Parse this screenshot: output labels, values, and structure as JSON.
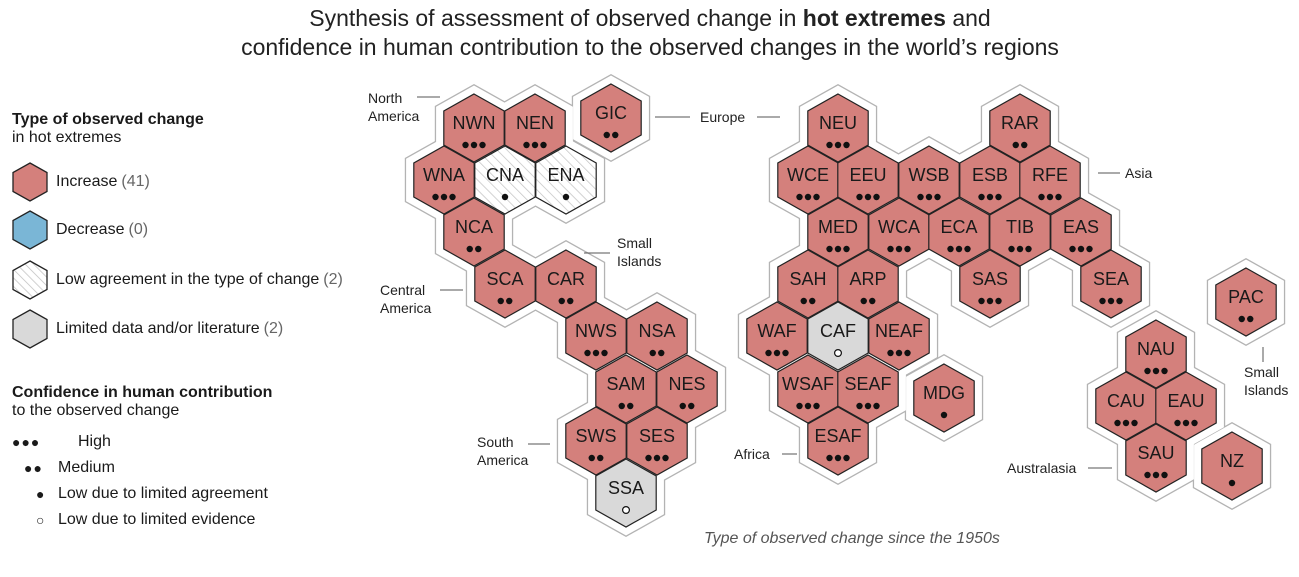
{
  "title": {
    "line1_pre": "Synthesis of assessment of observed change in ",
    "line1_bold": "hot extremes",
    "line1_post": " and",
    "line2": "confidence in human contribution to the observed changes in the world’s regions"
  },
  "legend": {
    "type_heading": "Type of observed change",
    "type_sub": "in hot extremes",
    "items": [
      {
        "label": "Increase",
        "count": "(41)",
        "color": "#d4807c"
      },
      {
        "label": "Decrease",
        "count": "(0)",
        "color": "#7ab6d6"
      },
      {
        "label": "Low agreement in the type of change",
        "count": "(2)",
        "color": "#ffffff"
      },
      {
        "label": "Limited data and/or literature",
        "count": "(2)",
        "color": "#d9d9d9"
      }
    ],
    "conf_heading": "Confidence in human contribution",
    "conf_sub": "to the observed change",
    "conf_items": [
      {
        "symbol": "●●●",
        "label": "High"
      },
      {
        "symbol": "●●",
        "label": "Medium"
      },
      {
        "symbol": "●",
        "label": "Low due to limited agreement"
      },
      {
        "symbol": "○",
        "label": "Low due to limited evidence"
      }
    ]
  },
  "region_labels": {
    "north_america": [
      "North",
      "America"
    ],
    "europe": [
      "Europe"
    ],
    "asia": [
      "Asia"
    ],
    "central_america": [
      "Central",
      "America"
    ],
    "small_islands_carib": [
      "Small",
      "Islands"
    ],
    "south_america": [
      "South",
      "America"
    ],
    "africa": [
      "Africa"
    ],
    "australasia": [
      "Australasia"
    ],
    "small_islands_pac": [
      "Small",
      "Islands"
    ]
  },
  "hexagons": [
    {
      "code": "NWN",
      "type": "increase",
      "confidence": "high"
    },
    {
      "code": "NEN",
      "type": "increase",
      "confidence": "high"
    },
    {
      "code": "GIC",
      "type": "increase",
      "confidence": "medium"
    },
    {
      "code": "WNA",
      "type": "increase",
      "confidence": "high"
    },
    {
      "code": "CNA",
      "type": "low_agreement",
      "confidence": "low_agreement"
    },
    {
      "code": "ENA",
      "type": "low_agreement",
      "confidence": "low_agreement"
    },
    {
      "code": "NCA",
      "type": "increase",
      "confidence": "medium"
    },
    {
      "code": "SCA",
      "type": "increase",
      "confidence": "medium"
    },
    {
      "code": "CAR",
      "type": "increase",
      "confidence": "medium"
    },
    {
      "code": "NWS",
      "type": "increase",
      "confidence": "high"
    },
    {
      "code": "NSA",
      "type": "increase",
      "confidence": "medium"
    },
    {
      "code": "SAM",
      "type": "increase",
      "confidence": "medium"
    },
    {
      "code": "NES",
      "type": "increase",
      "confidence": "medium"
    },
    {
      "code": "SWS",
      "type": "increase",
      "confidence": "medium"
    },
    {
      "code": "SES",
      "type": "increase",
      "confidence": "high"
    },
    {
      "code": "SSA",
      "type": "limited_data",
      "confidence": "low_evidence"
    },
    {
      "code": "NEU",
      "type": "increase",
      "confidence": "high"
    },
    {
      "code": "RAR",
      "type": "increase",
      "confidence": "medium"
    },
    {
      "code": "WCE",
      "type": "increase",
      "confidence": "high"
    },
    {
      "code": "EEU",
      "type": "increase",
      "confidence": "high"
    },
    {
      "code": "WSB",
      "type": "increase",
      "confidence": "high"
    },
    {
      "code": "ESB",
      "type": "increase",
      "confidence": "high"
    },
    {
      "code": "RFE",
      "type": "increase",
      "confidence": "high"
    },
    {
      "code": "MED",
      "type": "increase",
      "confidence": "high"
    },
    {
      "code": "WCA",
      "type": "increase",
      "confidence": "high"
    },
    {
      "code": "ECA",
      "type": "increase",
      "confidence": "high"
    },
    {
      "code": "TIB",
      "type": "increase",
      "confidence": "high"
    },
    {
      "code": "EAS",
      "type": "increase",
      "confidence": "high"
    },
    {
      "code": "SAH",
      "type": "increase",
      "confidence": "medium"
    },
    {
      "code": "ARP",
      "type": "increase",
      "confidence": "medium"
    },
    {
      "code": "SAS",
      "type": "increase",
      "confidence": "high"
    },
    {
      "code": "SEA",
      "type": "increase",
      "confidence": "high"
    },
    {
      "code": "WAF",
      "type": "increase",
      "confidence": "high"
    },
    {
      "code": "CAF",
      "type": "limited_data",
      "confidence": "low_evidence"
    },
    {
      "code": "NEAF",
      "type": "increase",
      "confidence": "high"
    },
    {
      "code": "WSAF",
      "type": "increase",
      "confidence": "high"
    },
    {
      "code": "SEAF",
      "type": "increase",
      "confidence": "high"
    },
    {
      "code": "MDG",
      "type": "increase",
      "confidence": "low_agreement"
    },
    {
      "code": "ESAF",
      "type": "increase",
      "confidence": "high"
    },
    {
      "code": "PAC",
      "type": "increase",
      "confidence": "medium"
    },
    {
      "code": "NAU",
      "type": "increase",
      "confidence": "high"
    },
    {
      "code": "CAU",
      "type": "increase",
      "confidence": "high"
    },
    {
      "code": "EAU",
      "type": "increase",
      "confidence": "high"
    },
    {
      "code": "SAU",
      "type": "increase",
      "confidence": "high"
    },
    {
      "code": "NZ",
      "type": "increase",
      "confidence": "low_agreement"
    }
  ],
  "colors": {
    "increase": "#d4807c",
    "decrease": "#7ab6d6",
    "low_agreement": "#ffffff",
    "limited_data": "#d9d9d9",
    "hex_border": "#222222",
    "halo": "#b3b3b3"
  },
  "footnote": "Type of observed change since the 1950s"
}
